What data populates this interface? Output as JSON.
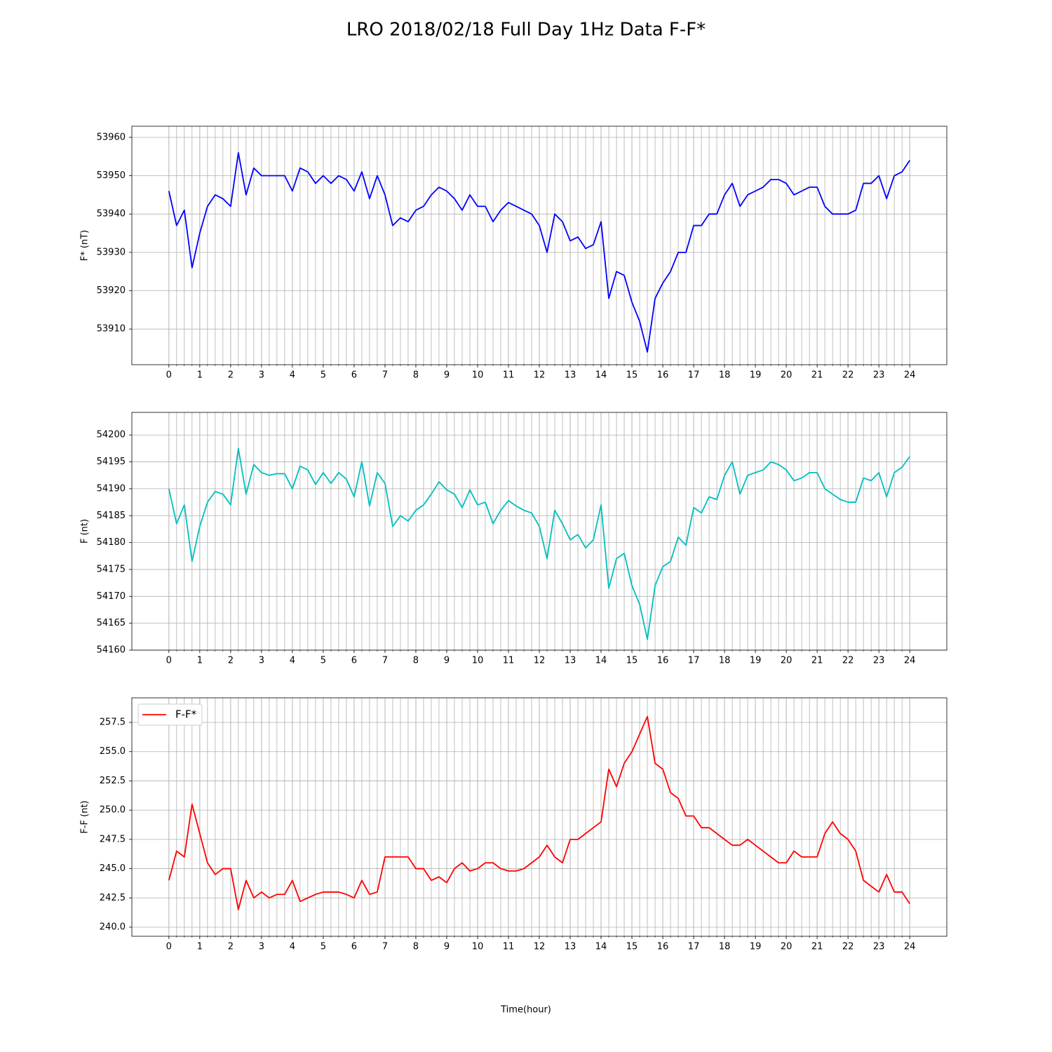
{
  "title": "LRO 2018/02/18 Full Day 1Hz Data F-F*",
  "xlabel": "Time(hour)",
  "chart_data": [
    {
      "type": "line",
      "ylabel": "F* (nT)",
      "x": [
        0,
        0.25,
        0.5,
        0.75,
        1,
        1.25,
        1.5,
        1.75,
        2,
        2.25,
        2.5,
        2.75,
        3,
        3.25,
        3.5,
        3.75,
        4,
        4.25,
        4.5,
        4.75,
        5,
        5.25,
        5.5,
        5.75,
        6,
        6.25,
        6.5,
        6.75,
        7,
        7.25,
        7.5,
        7.75,
        8,
        8.25,
        8.5,
        8.75,
        9,
        9.25,
        9.5,
        9.75,
        10,
        10.25,
        10.5,
        10.75,
        11,
        11.25,
        11.5,
        11.75,
        12,
        12.25,
        12.5,
        12.75,
        13,
        13.25,
        13.5,
        13.75,
        14,
        14.25,
        14.5,
        14.75,
        15,
        15.25,
        15.5,
        15.75,
        16,
        16.25,
        16.5,
        16.75,
        17,
        17.25,
        17.5,
        17.75,
        18,
        18.25,
        18.5,
        18.75,
        19,
        19.25,
        19.5,
        19.75,
        20,
        20.25,
        20.5,
        20.75,
        21,
        21.25,
        21.5,
        21.75,
        22,
        22.25,
        22.5,
        22.75,
        23,
        23.25,
        23.5,
        23.75,
        24
      ],
      "series": [
        {
          "color": "#0000ff",
          "values": [
            53946,
            53937,
            53941,
            53926,
            53935,
            53942,
            53945,
            53944,
            53942,
            53956,
            53945,
            53952,
            53950,
            53950,
            53950,
            53950,
            53946,
            53952,
            53951,
            53948,
            53950,
            53948,
            53950,
            53949,
            53946,
            53951,
            53944,
            53950,
            53945,
            53937,
            53939,
            53938,
            53941,
            53942,
            53945,
            53947,
            53946,
            53944,
            53941,
            53945,
            53942,
            53942,
            53938,
            53941,
            53943,
            53942,
            53941,
            53940,
            53937,
            53930,
            53940,
            53938,
            53933,
            53934,
            53931,
            53932,
            53938,
            53918,
            53925,
            53924,
            53917,
            53912,
            53904,
            53918,
            53922,
            53925,
            53930,
            53930,
            53937,
            53937,
            53940,
            53940,
            53945,
            53948,
            53942,
            53945,
            53946,
            53947,
            53949,
            53949,
            53948,
            53945,
            53946,
            53947,
            53947,
            53942,
            53940,
            53940,
            53940,
            53941,
            53948,
            53948,
            53950,
            53944,
            53950,
            53951,
            53954
          ]
        }
      ],
      "xlim": [
        -1.2,
        25.2
      ],
      "ylim": [
        53900.7,
        53962.9
      ],
      "xticks": [
        0,
        1,
        2,
        3,
        4,
        5,
        6,
        7,
        8,
        9,
        10,
        11,
        12,
        13,
        14,
        15,
        16,
        17,
        18,
        19,
        20,
        21,
        22,
        23,
        24
      ],
      "x_minor_step": 0.25,
      "yticks": [
        53910,
        53920,
        53930,
        53940,
        53950,
        53960
      ],
      "grid": true
    },
    {
      "type": "line",
      "ylabel": "F (nt)",
      "x": [
        0,
        0.25,
        0.5,
        0.75,
        1,
        1.25,
        1.5,
        1.75,
        2,
        2.25,
        2.5,
        2.75,
        3,
        3.25,
        3.5,
        3.75,
        4,
        4.25,
        4.5,
        4.75,
        5,
        5.25,
        5.5,
        5.75,
        6,
        6.25,
        6.5,
        6.75,
        7,
        7.25,
        7.5,
        7.75,
        8,
        8.25,
        8.5,
        8.75,
        9,
        9.25,
        9.5,
        9.75,
        10,
        10.25,
        10.5,
        10.75,
        11,
        11.25,
        11.5,
        11.75,
        12,
        12.25,
        12.5,
        12.75,
        13,
        13.25,
        13.5,
        13.75,
        14,
        14.25,
        14.5,
        14.75,
        15,
        15.25,
        15.5,
        15.75,
        16,
        16.25,
        16.5,
        16.75,
        17,
        17.25,
        17.5,
        17.75,
        18,
        18.25,
        18.5,
        18.75,
        19,
        19.25,
        19.5,
        19.75,
        20,
        20.25,
        20.5,
        20.75,
        21,
        21.25,
        21.5,
        21.75,
        22,
        22.25,
        22.5,
        22.75,
        23,
        23.25,
        23.5,
        23.75,
        24
      ],
      "series": [
        {
          "color": "#00bfbf",
          "values": [
            54190,
            54183.5,
            54187,
            54176.5,
            54183,
            54187.5,
            54189.5,
            54189,
            54187,
            54197.5,
            54189,
            54194.5,
            54193,
            54192.5,
            54192.8,
            54192.8,
            54190,
            54194.2,
            54193.5,
            54190.8,
            54193,
            54191,
            54193,
            54191.8,
            54188.5,
            54195,
            54186.8,
            54193,
            54191,
            54183,
            54185,
            54184,
            54186,
            54187,
            54189,
            54191.3,
            54189.8,
            54189,
            54186.5,
            54189.8,
            54187,
            54187.5,
            54183.5,
            54186,
            54187.8,
            54186.8,
            54186,
            54185.5,
            54183,
            54177,
            54186,
            54183.5,
            54180.5,
            54181.5,
            54179,
            54180.5,
            54187,
            54171.5,
            54177,
            54178,
            54172,
            54168.5,
            54162,
            54172,
            54175.5,
            54176.5,
            54181,
            54179.5,
            54186.5,
            54185.5,
            54188.5,
            54188,
            54192.5,
            54195,
            54189,
            54192.5,
            54193,
            54193.5,
            54195,
            54194.5,
            54193.5,
            54191.5,
            54192,
            54193,
            54193,
            54190,
            54189,
            54188,
            54187.5,
            54187.5,
            54192,
            54191.5,
            54193,
            54188.5,
            54193,
            54194,
            54196
          ]
        }
      ],
      "xlim": [
        -1.2,
        25.2
      ],
      "ylim": [
        54160,
        54204.2
      ],
      "xticks": [
        0,
        1,
        2,
        3,
        4,
        5,
        6,
        7,
        8,
        9,
        10,
        11,
        12,
        13,
        14,
        15,
        16,
        17,
        18,
        19,
        20,
        21,
        22,
        23,
        24
      ],
      "x_minor_step": 0.25,
      "yticks": [
        54160,
        54165,
        54170,
        54175,
        54180,
        54185,
        54190,
        54195,
        54200
      ],
      "grid": true
    },
    {
      "type": "line",
      "ylabel": "F-F (nt)",
      "x": [
        0,
        0.25,
        0.5,
        0.75,
        1,
        1.25,
        1.5,
        1.75,
        2,
        2.25,
        2.5,
        2.75,
        3,
        3.25,
        3.5,
        3.75,
        4,
        4.25,
        4.5,
        4.75,
        5,
        5.25,
        5.5,
        5.75,
        6,
        6.25,
        6.5,
        6.75,
        7,
        7.25,
        7.5,
        7.75,
        8,
        8.25,
        8.5,
        8.75,
        9,
        9.25,
        9.5,
        9.75,
        10,
        10.25,
        10.5,
        10.75,
        11,
        11.25,
        11.5,
        11.75,
        12,
        12.25,
        12.5,
        12.75,
        13,
        13.25,
        13.5,
        13.75,
        14,
        14.25,
        14.5,
        14.75,
        15,
        15.25,
        15.5,
        15.75,
        16,
        16.25,
        16.5,
        16.75,
        17,
        17.25,
        17.5,
        17.75,
        18,
        18.25,
        18.5,
        18.75,
        19,
        19.25,
        19.5,
        19.75,
        20,
        20.25,
        20.5,
        20.75,
        21,
        21.25,
        21.5,
        21.75,
        22,
        22.25,
        22.5,
        22.75,
        23,
        23.25,
        23.5,
        23.75,
        24
      ],
      "series": [
        {
          "name": "F-F*",
          "color": "#ff0000",
          "values": [
            244,
            246.5,
            246,
            250.5,
            248,
            245.5,
            244.5,
            245,
            245,
            241.5,
            244,
            242.5,
            243,
            242.5,
            242.8,
            242.8,
            244,
            242.2,
            242.5,
            242.8,
            243,
            243,
            243,
            242.8,
            242.5,
            244,
            242.8,
            243,
            246,
            246,
            246,
            246,
            245,
            245,
            244,
            244.3,
            243.8,
            245,
            245.5,
            244.8,
            245,
            245.5,
            245.5,
            245,
            244.8,
            244.8,
            245,
            245.5,
            246,
            247,
            246,
            245.5,
            247.5,
            247.5,
            248,
            248.5,
            249,
            253.5,
            252,
            254,
            255,
            256.5,
            258,
            254,
            253.5,
            251.5,
            251,
            249.5,
            249.5,
            248.5,
            248.5,
            248,
            247.5,
            247,
            247,
            247.5,
            247,
            246.5,
            246,
            245.5,
            245.5,
            246.5,
            246,
            246,
            246,
            248,
            249,
            248,
            247.5,
            246.5,
            244,
            243.5,
            243,
            244.5,
            243,
            243,
            242
          ]
        }
      ],
      "xlim": [
        -1.2,
        25.2
      ],
      "ylim": [
        239.22,
        259.6
      ],
      "xticks": [
        0,
        1,
        2,
        3,
        4,
        5,
        6,
        7,
        8,
        9,
        10,
        11,
        12,
        13,
        14,
        15,
        16,
        17,
        18,
        19,
        20,
        21,
        22,
        23,
        24
      ],
      "x_minor_step": 0.25,
      "yticks": [
        {
          "value": 240,
          "label": "240.0"
        },
        242.5,
        {
          "value": 245,
          "label": "245.0"
        },
        247.5,
        {
          "value": 250,
          "label": "250.0"
        },
        252.5,
        {
          "value": 255,
          "label": "255.0"
        },
        257.5
      ],
      "grid": true,
      "legend": "upper left"
    }
  ]
}
